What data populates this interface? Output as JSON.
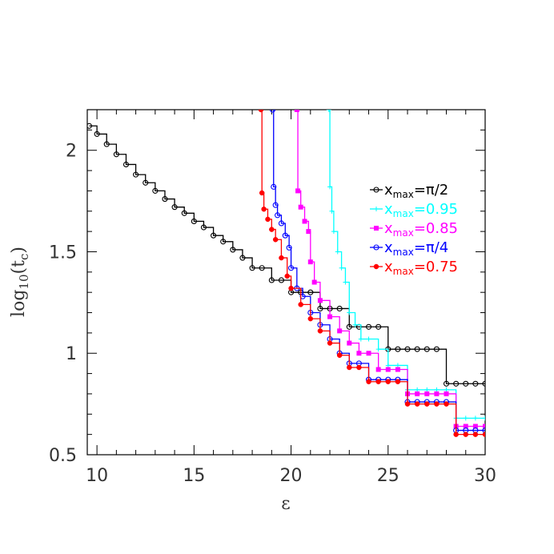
{
  "chart_data": {
    "type": "line",
    "xlabel": "ε",
    "ylabel": {
      "main": "log",
      "sub1": "10",
      "open": "(t",
      "sub2": "c",
      "close": ")"
    },
    "xlim": [
      9.5,
      30
    ],
    "ylim": [
      0.5,
      2.2
    ],
    "x_ticks": [
      10,
      15,
      20,
      25,
      30
    ],
    "x_tick_labels": [
      "10",
      "15",
      "20",
      "25",
      "30"
    ],
    "y_ticks": [
      0.5,
      1,
      1.5,
      2
    ],
    "y_tick_labels": [
      "0.5",
      "1",
      "1.5",
      "2"
    ],
    "grid": false,
    "legend_position": "right",
    "series": [
      {
        "name": "x_max=π/2",
        "legend": {
          "x": "x",
          "sub": "max",
          "rest": "=π/2"
        },
        "color": "#000000",
        "marker": "open-circle",
        "x": [
          9.6,
          10.0,
          10.5,
          11.0,
          11.5,
          12.0,
          12.5,
          13.0,
          13.5,
          14.0,
          14.5,
          15.0,
          15.5,
          16.0,
          16.5,
          17.0,
          17.5,
          18.0,
          18.5,
          19.0,
          19.5,
          20.0,
          20.5,
          21.0,
          21.5,
          22.0,
          22.5,
          23.0,
          23.5,
          24.0,
          24.5,
          25.0,
          25.5,
          26.0,
          26.5,
          27.0,
          27.5,
          28.0,
          28.5,
          29.0,
          29.5,
          30.0
        ],
        "y": [
          2.12,
          2.08,
          2.03,
          1.98,
          1.93,
          1.88,
          1.84,
          1.8,
          1.76,
          1.72,
          1.69,
          1.65,
          1.62,
          1.58,
          1.55,
          1.51,
          1.47,
          1.42,
          1.42,
          1.36,
          1.36,
          1.3,
          1.3,
          1.3,
          1.22,
          1.22,
          1.22,
          1.13,
          1.13,
          1.13,
          1.13,
          1.02,
          1.02,
          1.02,
          1.02,
          1.02,
          1.02,
          0.85,
          0.85,
          0.85,
          0.85,
          0.85
        ]
      },
      {
        "name": "x_max=0.95",
        "legend": {
          "x": "x",
          "sub": "max",
          "rest": "=0.95"
        },
        "color": "#00ffff",
        "marker": "cross",
        "x": [
          21.95,
          22.0,
          22.1,
          22.2,
          22.4,
          22.6,
          22.8,
          23.0,
          23.3,
          23.6,
          24.0,
          24.5,
          25.0,
          25.5,
          26.0,
          26.5,
          27.0,
          27.5,
          28.0,
          28.5,
          29.0,
          29.5,
          30.0
        ],
        "y": [
          2.2,
          1.82,
          1.7,
          1.6,
          1.5,
          1.42,
          1.35,
          1.2,
          1.14,
          1.07,
          1.07,
          1.02,
          0.94,
          0.94,
          0.82,
          0.82,
          0.82,
          0.82,
          0.82,
          0.68,
          0.68,
          0.68,
          0.68
        ]
      },
      {
        "name": "x_max=0.85",
        "legend": {
          "x": "x",
          "sub": "max",
          "rest": "=0.85"
        },
        "color": "#ff00ff",
        "marker": "filled-square",
        "x": [
          20.3,
          20.35,
          20.5,
          20.7,
          20.9,
          21.0,
          21.2,
          21.5,
          22.0,
          22.5,
          23.0,
          23.5,
          24.0,
          24.5,
          25.0,
          25.5,
          26.0,
          26.5,
          27.0,
          27.5,
          28.0,
          28.5,
          29.0,
          29.5,
          30.0
        ],
        "y": [
          2.2,
          1.8,
          1.72,
          1.65,
          1.6,
          1.45,
          1.35,
          1.26,
          1.18,
          1.11,
          1.05,
          1.0,
          1.0,
          0.92,
          0.92,
          0.92,
          0.8,
          0.8,
          0.8,
          0.8,
          0.8,
          0.64,
          0.64,
          0.64,
          0.64
        ]
      },
      {
        "name": "x_max=π/4",
        "legend": {
          "x": "x",
          "sub": "max",
          "rest": "=π/4"
        },
        "color": "#0000ff",
        "marker": "open-circle",
        "x": [
          19.05,
          19.1,
          19.2,
          19.3,
          19.5,
          19.7,
          19.9,
          20.0,
          20.3,
          20.6,
          21.0,
          21.5,
          22.0,
          22.5,
          23.0,
          23.5,
          24.0,
          24.5,
          25.0,
          25.5,
          26.0,
          26.5,
          27.0,
          27.5,
          28.0,
          28.5,
          29.0,
          29.5,
          30.0
        ],
        "y": [
          2.2,
          1.82,
          1.73,
          1.68,
          1.64,
          1.58,
          1.52,
          1.42,
          1.32,
          1.28,
          1.2,
          1.14,
          1.07,
          1.0,
          0.95,
          0.95,
          0.87,
          0.87,
          0.87,
          0.87,
          0.76,
          0.76,
          0.76,
          0.76,
          0.76,
          0.62,
          0.62,
          0.62,
          0.62
        ]
      },
      {
        "name": "x_max=0.75",
        "legend": {
          "x": "x",
          "sub": "max",
          "rest": "=0.75"
        },
        "color": "#ff0000",
        "marker": "filled-circle",
        "x": [
          18.45,
          18.5,
          18.6,
          18.8,
          19.0,
          19.2,
          19.5,
          19.8,
          20.0,
          20.5,
          21.0,
          21.5,
          22.0,
          22.5,
          23.0,
          23.5,
          24.0,
          24.5,
          25.0,
          25.5,
          26.0,
          26.5,
          27.0,
          27.5,
          28.0,
          28.5,
          29.0,
          29.5,
          30.0
        ],
        "y": [
          2.2,
          1.79,
          1.71,
          1.66,
          1.61,
          1.56,
          1.47,
          1.38,
          1.32,
          1.24,
          1.17,
          1.11,
          1.05,
          0.99,
          0.93,
          0.93,
          0.86,
          0.86,
          0.86,
          0.86,
          0.75,
          0.75,
          0.75,
          0.75,
          0.75,
          0.6,
          0.6,
          0.6,
          0.6
        ]
      }
    ]
  }
}
